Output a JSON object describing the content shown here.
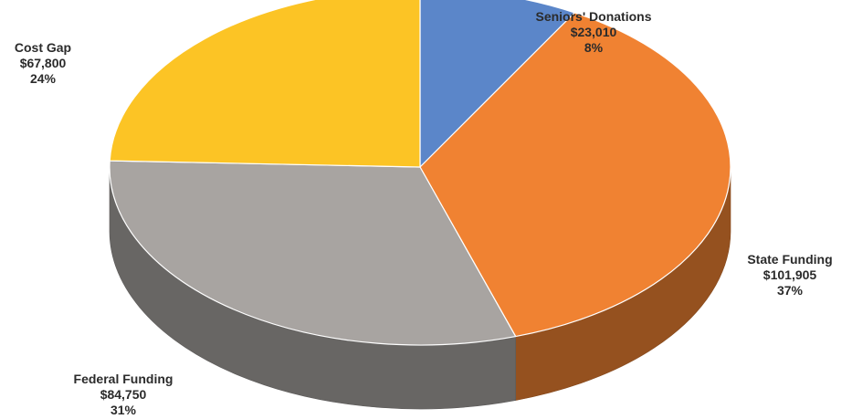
{
  "chart_data": {
    "type": "pie",
    "style": "3d",
    "title": "",
    "slices": [
      {
        "label": "Seniors' Donations",
        "amount": "$23,010",
        "percent": "8%",
        "value": 23010,
        "color": "#5B86C9"
      },
      {
        "label": "State Funding",
        "amount": "$101,905",
        "percent": "37%",
        "value": 101905,
        "color": "#F08232"
      },
      {
        "label": "Federal Funding",
        "amount": "$84,750",
        "percent": "31%",
        "value": 84750,
        "color": "#A8A4A1"
      },
      {
        "label": "Cost Gap",
        "amount": "$67,800",
        "percent": "24%",
        "value": 67800,
        "color": "#FCC425"
      }
    ]
  }
}
